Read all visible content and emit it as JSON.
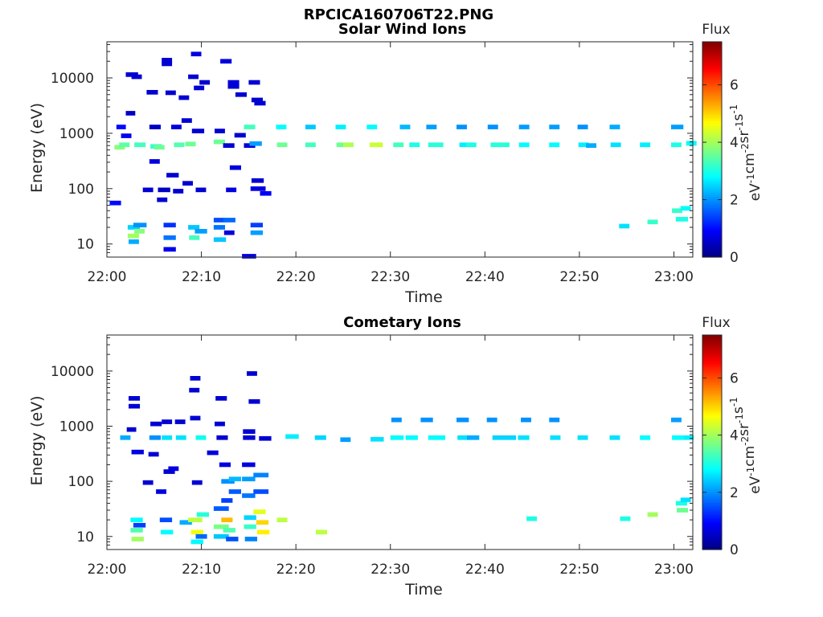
{
  "figure": {
    "title": "RPCICA160706T22.PNG"
  },
  "chart_data": [
    {
      "type": "heatmap",
      "title": "Solar Wind Ions",
      "xlabel": "Time",
      "ylabel": "Energy (eV)",
      "x_ticks": [
        "22:00",
        "22:10",
        "22:20",
        "22:30",
        "22:40",
        "22:50",
        "23:00"
      ],
      "x_range_minutes": [
        0,
        62
      ],
      "y_scale": "log",
      "y_ticks": [
        10,
        100,
        1000,
        10000
      ],
      "y_tick_labels": [
        "10",
        "100",
        "1000",
        "10000"
      ],
      "y_range": [
        5.8,
        45000
      ],
      "colorbar": {
        "label": "Flux",
        "unit": "eV-1cm-2sr-1s-1",
        "range": [
          0,
          7.5
        ],
        "ticks": [
          0,
          2,
          4,
          6
        ],
        "colormap": "jet"
      },
      "cells": [
        [
          0.3,
          1.2,
          55,
          1
        ],
        [
          0.8,
          1.1,
          560,
          3.8
        ],
        [
          1.0,
          1.0,
          1300,
          1
        ],
        [
          1.3,
          1.1,
          620,
          3.5
        ],
        [
          1.5,
          1.1,
          900,
          0.8
        ],
        [
          2.0,
          1.3,
          11500,
          0.6
        ],
        [
          2.2,
          1.3,
          20,
          2.5
        ],
        [
          2.2,
          1.2,
          14,
          4
        ],
        [
          2.3,
          1.1,
          11,
          2.2
        ],
        [
          2.0,
          1.0,
          2300,
          0.5
        ],
        [
          2.6,
          1.1,
          10500,
          0.6
        ],
        [
          2.9,
          1.2,
          620,
          3.3
        ],
        [
          2.8,
          1.4,
          22,
          2
        ],
        [
          2.9,
          1.1,
          17,
          3.8
        ],
        [
          3.8,
          1.1,
          95,
          0.6
        ],
        [
          4.5,
          1.2,
          1300,
          0.5
        ],
        [
          4.2,
          1.2,
          5500,
          0.6
        ],
        [
          4.5,
          1.1,
          310,
          0.7
        ],
        [
          4.6,
          1.2,
          580,
          3.2
        ],
        [
          5.0,
          1.1,
          560,
          3.6
        ],
        [
          5.4,
          1.3,
          95,
          0.5
        ],
        [
          5.3,
          1.1,
          63,
          0.6
        ],
        [
          5.8,
          1.1,
          21000,
          0.6
        ],
        [
          5.8,
          1.1,
          18000,
          0.6
        ],
        [
          6.0,
          1.3,
          22,
          1.3
        ],
        [
          6.0,
          1.3,
          13,
          1.8
        ],
        [
          6.0,
          1.3,
          8,
          0.8
        ],
        [
          6.2,
          1.1,
          5400,
          0.6
        ],
        [
          6.3,
          1.3,
          175,
          0.6
        ],
        [
          6.8,
          1.1,
          1300,
          0.7
        ],
        [
          7.0,
          1.1,
          90,
          0.6
        ],
        [
          7.1,
          1.1,
          620,
          3.4
        ],
        [
          7.6,
          1.1,
          4400,
          0.6
        ],
        [
          7.9,
          1.1,
          1700,
          0.6
        ],
        [
          8.0,
          1.1,
          125,
          0.6
        ],
        [
          8.3,
          1.1,
          640,
          3.6
        ],
        [
          8.6,
          1.2,
          20,
          2.4
        ],
        [
          8.6,
          1.1,
          10500,
          0.6
        ],
        [
          8.7,
          1.1,
          13,
          3.3
        ],
        [
          8.9,
          1.1,
          27000,
          0.7
        ],
        [
          9.0,
          1.3,
          1100,
          0.6
        ],
        [
          9.2,
          1.1,
          6600,
          0.6
        ],
        [
          9.3,
          1.3,
          17,
          2.1
        ],
        [
          9.4,
          1.1,
          95,
          0.6
        ],
        [
          9.8,
          1.1,
          8300,
          0.6
        ],
        [
          11.3,
          1.2,
          700,
          3.6
        ],
        [
          11.3,
          1.2,
          20,
          1.8
        ],
        [
          11.3,
          1.3,
          12,
          2.4
        ],
        [
          11.3,
          1.2,
          27,
          1.5
        ],
        [
          11.4,
          1.1,
          1100,
          0.6
        ],
        [
          12.0,
          1.2,
          20000,
          0.7
        ],
        [
          12.3,
          1.2,
          600,
          0.6
        ],
        [
          12.3,
          1.3,
          27,
          1.7
        ],
        [
          12.4,
          1.1,
          16,
          0.7
        ],
        [
          12.6,
          1.1,
          95,
          0.7
        ],
        [
          12.8,
          1.2,
          8300,
          0.7
        ],
        [
          12.8,
          1.2,
          7000,
          0.6
        ],
        [
          13.0,
          1.2,
          240,
          0.7
        ],
        [
          13.5,
          1.2,
          920,
          0.6
        ],
        [
          13.6,
          1.2,
          5000,
          0.6
        ],
        [
          14.3,
          1.5,
          6,
          0.7
        ],
        [
          14.5,
          1.2,
          600,
          0.6
        ],
        [
          14.5,
          1.2,
          1300,
          3.3
        ],
        [
          15.0,
          1.2,
          8300,
          0.6
        ],
        [
          15.1,
          1.3,
          650,
          2.1
        ],
        [
          15.2,
          1.3,
          22,
          1.4
        ],
        [
          15.2,
          1.3,
          16,
          2.1
        ],
        [
          15.2,
          1.6,
          100,
          0.7
        ],
        [
          15.3,
          1.2,
          4000,
          0.6
        ],
        [
          15.3,
          1.3,
          140,
          0.6
        ],
        [
          16.2,
          1.2,
          82,
          0.9
        ],
        [
          15.6,
          1.2,
          3500,
          0.6
        ],
        [
          17.9,
          1.1,
          1300,
          2.8
        ],
        [
          18.0,
          1.1,
          620,
          3.6
        ],
        [
          21.0,
          1.1,
          1300,
          2.4
        ],
        [
          21.0,
          1.1,
          620,
          3.3
        ],
        [
          24.2,
          1.1,
          1300,
          2.7
        ],
        [
          24.3,
          1.1,
          620,
          3.6
        ],
        [
          25.0,
          1.1,
          620,
          4.1
        ],
        [
          27.5,
          1.1,
          1300,
          2.8
        ],
        [
          27.8,
          1.4,
          620,
          4.3
        ],
        [
          30.3,
          1.1,
          620,
          3.3
        ],
        [
          31.0,
          1.1,
          1300,
          2.3
        ],
        [
          32.0,
          1.1,
          620,
          3.0
        ],
        [
          33.8,
          1.1,
          1300,
          2.1
        ],
        [
          34.0,
          1.6,
          620,
          3.1
        ],
        [
          37.0,
          1.1,
          1300,
          2.0
        ],
        [
          37.3,
          1.1,
          620,
          2.7
        ],
        [
          38.0,
          1.1,
          620,
          3.0
        ],
        [
          40.3,
          1.1,
          1300,
          2.0
        ],
        [
          40.6,
          2.0,
          620,
          3.1
        ],
        [
          43.6,
          1.1,
          1300,
          2.1
        ],
        [
          43.6,
          1.1,
          620,
          2.8
        ],
        [
          46.8,
          1.1,
          1300,
          2.1
        ],
        [
          46.8,
          1.1,
          620,
          2.8
        ],
        [
          49.8,
          1.1,
          1300,
          2.0
        ],
        [
          49.9,
          1.1,
          620,
          2.7
        ],
        [
          50.7,
          1.1,
          600,
          2.2
        ],
        [
          53.2,
          1.1,
          1300,
          2.2
        ],
        [
          53.3,
          1.1,
          620,
          2.6
        ],
        [
          54.2,
          1.1,
          21,
          2.6
        ],
        [
          56.4,
          1.1,
          620,
          2.7
        ],
        [
          57.2,
          1.1,
          25,
          3.2
        ],
        [
          59.7,
          1.3,
          1300,
          2.1
        ],
        [
          59.7,
          1.1,
          620,
          3.0
        ],
        [
          59.8,
          1.1,
          40,
          3.2
        ],
        [
          60.2,
          1.3,
          28,
          3.0
        ],
        [
          60.7,
          1.1,
          44,
          2.8
        ],
        [
          61.3,
          1.1,
          660,
          2.8
        ]
      ]
    },
    {
      "type": "heatmap",
      "title": "Cometary Ions",
      "xlabel": "Time",
      "ylabel": "Energy (eV)",
      "x_ticks": [
        "22:00",
        "22:10",
        "22:20",
        "22:30",
        "22:40",
        "22:50",
        "23:00"
      ],
      "x_range_minutes": [
        0,
        62
      ],
      "y_scale": "log",
      "y_ticks": [
        10,
        100,
        1000,
        10000
      ],
      "y_tick_labels": [
        "10",
        "100",
        "1000",
        "10000"
      ],
      "y_range": [
        5.8,
        45000
      ],
      "colorbar": {
        "label": "Flux",
        "unit": "eV-1cm-2sr-1s-1",
        "range": [
          0,
          7.5
        ],
        "ticks": [
          0,
          2,
          4,
          6
        ],
        "colormap": "jet"
      },
      "cells": [
        [
          1.4,
          1.1,
          620,
          2.2
        ],
        [
          2.1,
          1.0,
          870,
          0.6
        ],
        [
          2.3,
          1.2,
          3200,
          0.6
        ],
        [
          2.3,
          1.2,
          2300,
          0.6
        ],
        [
          2.5,
          1.3,
          20,
          2.8
        ],
        [
          2.5,
          1.3,
          13,
          3.4
        ],
        [
          2.6,
          1.3,
          9,
          4.0
        ],
        [
          2.6,
          1.3,
          340,
          0.7
        ],
        [
          2.8,
          1.3,
          16,
          1.4
        ],
        [
          3.8,
          1.1,
          95,
          0.6
        ],
        [
          4.4,
          1.1,
          310,
          0.6
        ],
        [
          4.5,
          1.2,
          620,
          2.0
        ],
        [
          4.6,
          1.2,
          1100,
          0.6
        ],
        [
          5.2,
          1.1,
          65,
          0.7
        ],
        [
          5.6,
          1.3,
          20,
          1.5
        ],
        [
          5.7,
          1.3,
          12,
          2.8
        ],
        [
          5.8,
          1.1,
          620,
          2.6
        ],
        [
          5.8,
          1.1,
          1200,
          0.6
        ],
        [
          6.0,
          1.2,
          150,
          0.6
        ],
        [
          6.5,
          1.1,
          170,
          0.7
        ],
        [
          7.2,
          1.1,
          1200,
          0.6
        ],
        [
          7.3,
          1.1,
          620,
          2.6
        ],
        [
          7.7,
          1.3,
          18,
          2.2
        ],
        [
          8.6,
          1.5,
          20,
          4.2
        ],
        [
          8.9,
          1.3,
          12,
          4.6
        ],
        [
          8.9,
          1.3,
          8,
          2.8
        ],
        [
          8.7,
          1.1,
          4500,
          0.6
        ],
        [
          8.8,
          1.1,
          7400,
          0.6
        ],
        [
          8.8,
          1.1,
          1400,
          0.6
        ],
        [
          9.0,
          1.1,
          95,
          0.6
        ],
        [
          9.5,
          1.3,
          25,
          3.1
        ],
        [
          9.4,
          1.1,
          620,
          2.9
        ],
        [
          9.4,
          1.2,
          10,
          1.7
        ],
        [
          10.6,
          1.2,
          330,
          0.7
        ],
        [
          11.3,
          1.6,
          32,
          1.6
        ],
        [
          11.3,
          1.6,
          15,
          3.7
        ],
        [
          11.3,
          1.6,
          10,
          2.4
        ],
        [
          11.4,
          1.1,
          1100,
          0.6
        ],
        [
          11.5,
          1.2,
          3200,
          0.6
        ],
        [
          11.6,
          1.2,
          620,
          0.6
        ],
        [
          11.9,
          1.2,
          200,
          0.7
        ],
        [
          12.1,
          1.4,
          100,
          2.0
        ],
        [
          12.1,
          1.2,
          45,
          1.4
        ],
        [
          12.1,
          1.2,
          20,
          5.2
        ],
        [
          12.3,
          1.3,
          13,
          3.4
        ],
        [
          12.6,
          1.3,
          9,
          1.5
        ],
        [
          12.9,
          1.3,
          110,
          2.3
        ],
        [
          12.9,
          1.3,
          65,
          1.6
        ],
        [
          14.3,
          1.4,
          200,
          0.7
        ],
        [
          14.3,
          1.4,
          110,
          2.1
        ],
        [
          14.3,
          1.4,
          55,
          1.8
        ],
        [
          14.4,
          1.3,
          620,
          0.6
        ],
        [
          14.4,
          1.3,
          800,
          0.6
        ],
        [
          14.5,
          1.3,
          22,
          2.5
        ],
        [
          14.5,
          1.3,
          15,
          3.2
        ],
        [
          14.6,
          1.3,
          9,
          1.9
        ],
        [
          14.8,
          1.1,
          9000,
          0.6
        ],
        [
          15.0,
          1.2,
          2800,
          0.6
        ],
        [
          15.5,
          1.6,
          130,
          1.9
        ],
        [
          15.5,
          1.6,
          65,
          1.5
        ],
        [
          15.5,
          1.3,
          28,
          4.5
        ],
        [
          15.8,
          1.3,
          18,
          5.0
        ],
        [
          15.9,
          1.3,
          12,
          4.8
        ],
        [
          16.1,
          1.3,
          600,
          0.6
        ],
        [
          18.9,
          1.4,
          650,
          2.7
        ],
        [
          18.0,
          1.1,
          20,
          4.2
        ],
        [
          22.0,
          1.2,
          620,
          2.5
        ],
        [
          22.1,
          1.2,
          12,
          4.2
        ],
        [
          24.7,
          1.1,
          570,
          2.1
        ],
        [
          27.9,
          1.4,
          580,
          2.6
        ],
        [
          30.0,
          1.4,
          620,
          2.8
        ],
        [
          30.1,
          1.1,
          1300,
          2.0
        ],
        [
          31.6,
          1.3,
          620,
          2.8
        ],
        [
          33.2,
          1.3,
          1300,
          2.0
        ],
        [
          34.0,
          1.8,
          620,
          2.8
        ],
        [
          37.0,
          1.3,
          1300,
          2.0
        ],
        [
          37.1,
          1.3,
          620,
          2.6
        ],
        [
          38.1,
          1.3,
          620,
          2.2
        ],
        [
          40.2,
          1.1,
          1300,
          2.0
        ],
        [
          40.8,
          2.5,
          620,
          2.5
        ],
        [
          43.8,
          1.1,
          1300,
          2.0
        ],
        [
          43.5,
          1.2,
          620,
          2.6
        ],
        [
          44.4,
          1.1,
          21,
          3.0
        ],
        [
          46.8,
          1.1,
          1300,
          2.0
        ],
        [
          46.9,
          1.1,
          620,
          2.6
        ],
        [
          49.8,
          1.1,
          620,
          2.6
        ],
        [
          53.2,
          1.1,
          620,
          2.6
        ],
        [
          54.3,
          1.1,
          21,
          3.0
        ],
        [
          56.4,
          1.1,
          620,
          2.8
        ],
        [
          57.2,
          1.1,
          25,
          4.0
        ],
        [
          59.7,
          1.1,
          1300,
          2.1
        ],
        [
          59.8,
          1.2,
          620,
          2.8
        ],
        [
          60.2,
          1.2,
          40,
          3.0
        ],
        [
          60.3,
          1.2,
          30,
          3.6
        ],
        [
          60.7,
          1.1,
          46,
          2.6
        ],
        [
          61.0,
          1.1,
          620,
          2.7
        ]
      ]
    }
  ]
}
